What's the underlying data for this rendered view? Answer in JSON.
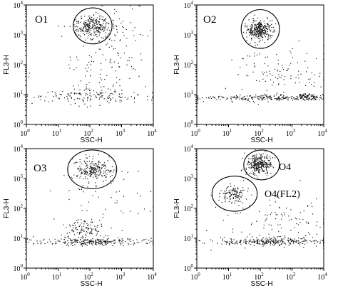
{
  "chart_data": [
    {
      "type": "scatter",
      "title": "O1",
      "xlabel": "SSC-H",
      "ylabel": "FL3-H",
      "x_scale": "log",
      "y_scale": "log",
      "xlim": [
        1,
        10000
      ],
      "ylim": [
        1,
        10000
      ],
      "x_ticks": [
        "10^0",
        "10^1",
        "10^2",
        "10^3",
        "10^4"
      ],
      "y_ticks": [
        "10^0",
        "10^1",
        "10^2",
        "10^3",
        "10^4"
      ],
      "gates": [
        {
          "label": "",
          "center": [
            120,
            2000
          ],
          "x_range": [
            30,
            500
          ],
          "y_range": [
            500,
            8000
          ]
        }
      ],
      "clusters": [
        {
          "center": [
            110,
            2000
          ],
          "x_spread_decades": 0.28,
          "y_spread_decades": 0.18,
          "count": 260
        },
        {
          "center": [
            150,
            9
          ],
          "x_spread_decades": 1.05,
          "y_spread_decades": 0.12,
          "count": 150
        },
        {
          "center": [
            300,
            60
          ],
          "x_spread_decades": 0.9,
          "y_spread_decades": 0.6,
          "count": 110
        },
        {
          "center": [
            700,
            1500
          ],
          "x_spread_decades": 0.5,
          "y_spread_decades": 0.5,
          "count": 60
        }
      ]
    },
    {
      "type": "scatter",
      "title": "O2",
      "xlabel": "SSC-H",
      "ylabel": "FL3-H",
      "x_scale": "log",
      "y_scale": "log",
      "xlim": [
        1,
        10000
      ],
      "ylim": [
        1,
        10000
      ],
      "x_ticks": [
        "10^0",
        "10^1",
        "10^2",
        "10^3",
        "10^4"
      ],
      "y_ticks": [
        "10^0",
        "10^1",
        "10^2",
        "10^3",
        "10^4"
      ],
      "gates": [
        {
          "label": "",
          "center": [
            90,
            1500
          ],
          "x_range": [
            25,
            400
          ],
          "y_range": [
            350,
            7000
          ]
        }
      ],
      "clusters": [
        {
          "center": [
            90,
            1500
          ],
          "x_spread_decades": 0.2,
          "y_spread_decades": 0.16,
          "count": 320
        },
        {
          "center": [
            100,
            8
          ],
          "x_spread_decades": 1.1,
          "y_spread_decades": 0.05,
          "count": 220
        },
        {
          "center": [
            400,
            60
          ],
          "x_spread_decades": 0.8,
          "y_spread_decades": 0.5,
          "count": 110
        },
        {
          "center": [
            3000,
            9
          ],
          "x_spread_decades": 0.2,
          "y_spread_decades": 0.05,
          "count": 90
        }
      ]
    },
    {
      "type": "scatter",
      "title": "O3",
      "xlabel": "SSC-H",
      "ylabel": "FL3-H",
      "x_scale": "log",
      "y_scale": "log",
      "xlim": [
        1,
        10000
      ],
      "ylim": [
        1,
        10000
      ],
      "x_ticks": [
        "10^0",
        "10^1",
        "10^2",
        "10^3",
        "10^4"
      ],
      "y_ticks": [
        "10^0",
        "10^1",
        "10^2",
        "10^3",
        "10^4"
      ],
      "gates": [
        {
          "label": "",
          "center": [
            120,
            2000
          ],
          "x_range": [
            20,
            700
          ],
          "y_range": [
            450,
            9000
          ]
        }
      ],
      "clusters": [
        {
          "center": [
            120,
            2000
          ],
          "x_spread_decades": 0.3,
          "y_spread_decades": 0.18,
          "count": 240
        },
        {
          "center": [
            150,
            8
          ],
          "x_spread_decades": 1.05,
          "y_spread_decades": 0.06,
          "count": 260
        },
        {
          "center": [
            60,
            18
          ],
          "x_spread_decades": 0.3,
          "y_spread_decades": 0.18,
          "count": 120
        },
        {
          "center": [
            500,
            200
          ],
          "x_spread_decades": 0.8,
          "y_spread_decades": 0.6,
          "count": 50
        }
      ]
    },
    {
      "type": "scatter",
      "title": "",
      "xlabel": "SSC-H",
      "ylabel": "FL3-H",
      "x_scale": "log",
      "y_scale": "log",
      "xlim": [
        1,
        10000
      ],
      "ylim": [
        1,
        10000
      ],
      "x_ticks": [
        "10^0",
        "10^1",
        "10^2",
        "10^3",
        "10^4"
      ],
      "y_ticks": [
        "10^0",
        "10^1",
        "10^2",
        "10^3",
        "10^4"
      ],
      "gates": [
        {
          "label": "O4",
          "center": [
            100,
            3000
          ],
          "x_range": [
            30,
            400
          ],
          "y_range": [
            900,
            9000
          ]
        },
        {
          "label": "O4(FL2)",
          "center": [
            15,
            300
          ],
          "x_range": [
            3,
            80
          ],
          "y_range": [
            80,
            1200
          ]
        }
      ],
      "clusters": [
        {
          "center": [
            90,
            3000
          ],
          "x_spread_decades": 0.2,
          "y_spread_decades": 0.17,
          "count": 300
        },
        {
          "center": [
            15,
            300
          ],
          "x_spread_decades": 0.22,
          "y_spread_decades": 0.15,
          "count": 120
        },
        {
          "center": [
            200,
            8
          ],
          "x_spread_decades": 0.9,
          "y_spread_decades": 0.06,
          "count": 280
        },
        {
          "center": [
            400,
            40
          ],
          "x_spread_decades": 0.9,
          "y_spread_decades": 0.5,
          "count": 110
        }
      ]
    }
  ]
}
